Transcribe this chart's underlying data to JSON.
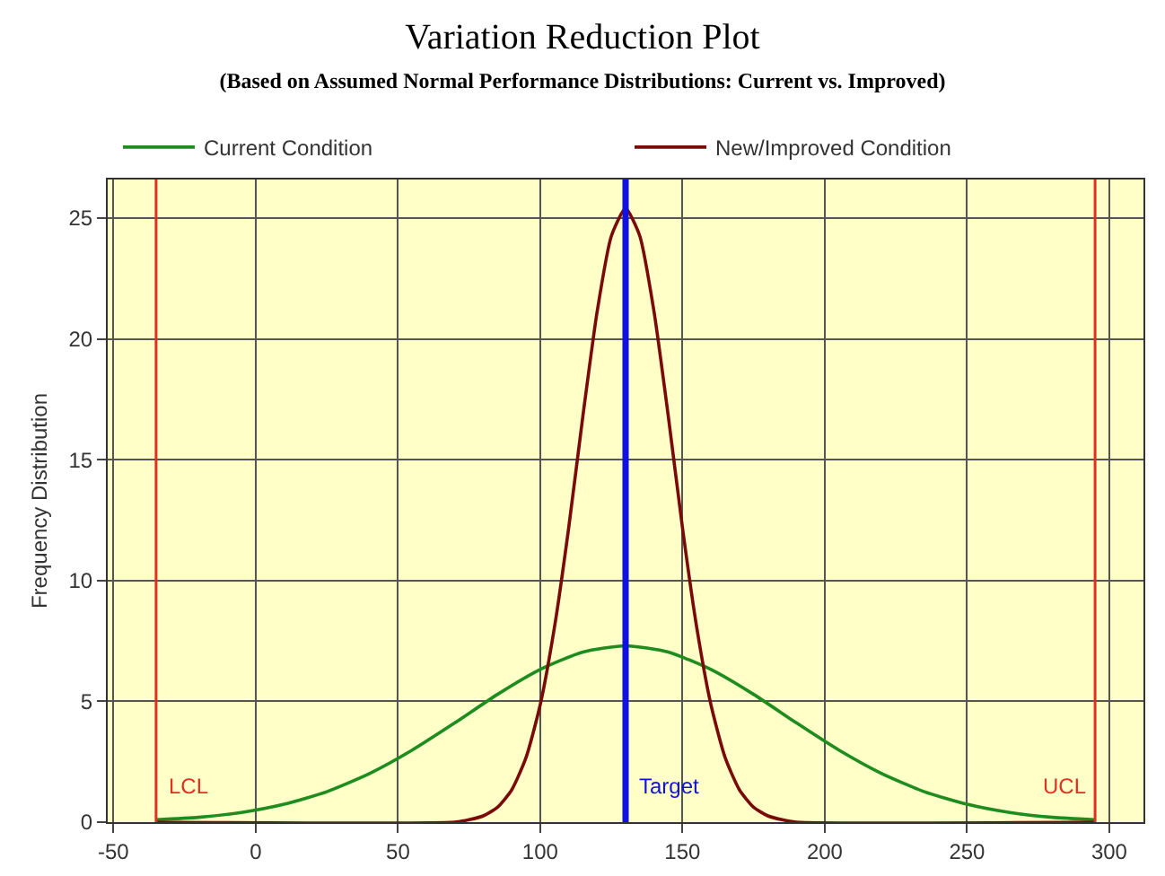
{
  "chart_data": {
    "type": "line",
    "title": "Variation Reduction Plot",
    "subtitle": "(Based on Assumed Normal Performance Distributions: Current vs. Improved)",
    "ylabel": "Frequency Distribution",
    "xlim": [
      -52,
      312
    ],
    "ylim": [
      0,
      26.6
    ],
    "xticks": [
      -50,
      0,
      50,
      100,
      150,
      200,
      250,
      300
    ],
    "yticks": [
      0,
      5,
      10,
      15,
      20,
      25
    ],
    "grid": true,
    "legend": "top",
    "marker": "none",
    "line_style": "solid",
    "series": [
      {
        "name": "Current Condition",
        "color": "#1e8c1e",
        "x": [
          -35,
          -20,
          -5,
          10,
          25,
          40,
          55,
          70,
          85,
          100,
          115,
          130,
          145,
          160,
          175,
          190,
          205,
          220,
          235,
          250,
          265,
          280,
          295
        ],
        "values": [
          0.1,
          0.2,
          0.4,
          0.74,
          1.26,
          2.01,
          2.98,
          4.11,
          5.29,
          6.32,
          7.04,
          7.3,
          7.04,
          6.32,
          5.29,
          4.11,
          2.98,
          2.01,
          1.26,
          0.74,
          0.4,
          0.2,
          0.1
        ]
      },
      {
        "name": "New/Improved Condition",
        "color": "#7a0a0a",
        "x": [
          -35,
          70,
          75,
          80,
          85,
          90,
          95,
          100,
          105,
          110,
          115,
          120,
          125,
          130,
          135,
          140,
          145,
          150,
          155,
          160,
          165,
          170,
          175,
          180,
          185,
          190,
          295
        ],
        "values": [
          0,
          0,
          0.1,
          0.26,
          0.62,
          1.34,
          2.67,
          4.86,
          8.06,
          12.18,
          16.81,
          21.13,
          24.26,
          25.4,
          24.26,
          21.13,
          16.81,
          12.18,
          8.06,
          4.86,
          2.67,
          1.34,
          0.62,
          0.26,
          0.1,
          0,
          0
        ]
      }
    ],
    "ref_lines": [
      {
        "axis": "x",
        "value": -35,
        "label": "LCL",
        "color": "#e03020"
      },
      {
        "axis": "x",
        "value": 295,
        "label": "UCL",
        "color": "#e03020"
      },
      {
        "axis": "x",
        "value": 130,
        "label": "Target",
        "color": "#1010e0"
      }
    ]
  }
}
